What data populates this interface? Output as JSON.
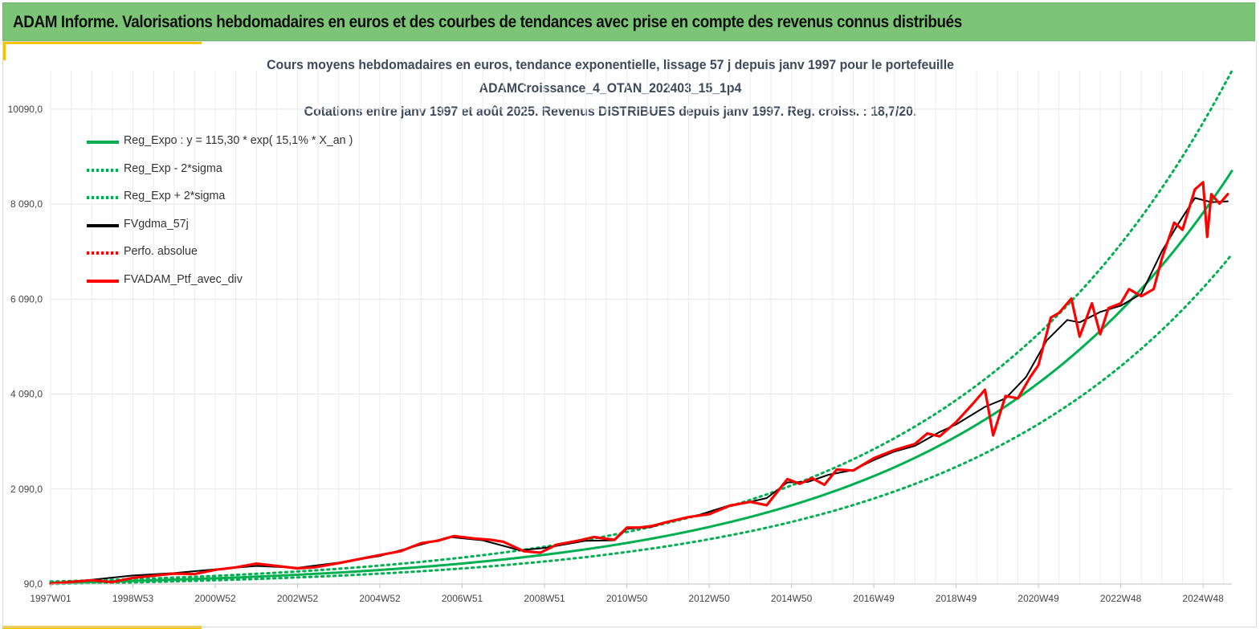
{
  "header": {
    "title": "ADAM Informe. Valorisations hebdomadaires en euros et des courbes de tendances avec prise en compte des revenus connus distribués"
  },
  "chart_data": {
    "type": "line",
    "title_lines": [
      "Cours moyens hebdomadaires  en euros, tendance exponentielle, lissage 57 j depuis janv 1997 pour le portefeuille",
      "ADAMCroissance_4_OTAN_202403_15_1p4",
      "Cotations  entre janv 1997 et août 2025. Revenus DISTRIBUES depuis janv 1997. Reg. croiss. : 18,7/20."
    ],
    "xlabel": "",
    "ylabel": "",
    "ylim": [
      90,
      10900
    ],
    "xlim": [
      1997.0,
      2025.7
    ],
    "y_ticks": [
      90,
      2090,
      4090,
      6090,
      8090,
      10090
    ],
    "y_tick_labels": [
      "90,0",
      "2 090,0",
      "4 090,0",
      "6 090,0",
      "8 090,0",
      "10090,0"
    ],
    "x_ticks": [
      1997.0,
      1999.0,
      2001.0,
      2003.0,
      2005.0,
      2007.0,
      2009.0,
      2011.0,
      2013.0,
      2015.0,
      2017.0,
      2019.0,
      2021.0,
      2023.0,
      2025.0
    ],
    "x_tick_labels": [
      "1997W01",
      "1998W53",
      "2000W52",
      "2002W52",
      "2004W52",
      "2006W51",
      "2008W51",
      "2010W50",
      "2012W50",
      "2014W50",
      "2016W49",
      "2018W49",
      "2020W49",
      "2022W48",
      "2024W48"
    ],
    "grid": true,
    "legend_position": "top-left",
    "trend": {
      "a": 115.3,
      "rate": 0.151,
      "band_factor_low": 0.8,
      "band_factor_high": 1.24
    },
    "series": [
      {
        "name": "Reg_Expo : y = 115,30 * exp( 15,1% *  X_an )",
        "color": "#00b050",
        "style": "solid",
        "derived": "trend"
      },
      {
        "name": "Reg_Exp - 2*sigma",
        "color": "#00b050",
        "style": "dotted",
        "derived": "trend_low"
      },
      {
        "name": "Reg_Exp + 2*sigma",
        "color": "#00b050",
        "style": "dotted",
        "derived": "trend_high"
      },
      {
        "name": "FVgdma_57j",
        "color": "#000000",
        "style": "solid",
        "x": [
          1997.0,
          1998.0,
          1999.0,
          2000.0,
          2001.0,
          2002.0,
          2003.0,
          2004.0,
          2005.0,
          2006.0,
          2006.7,
          2007.5,
          2008.4,
          2009.0,
          2010.0,
          2010.7,
          2011.0,
          2011.6,
          2012.0,
          2012.7,
          2013.5,
          2014.0,
          2014.4,
          2014.9,
          2015.4,
          2015.9,
          2016.5,
          2017.0,
          2017.5,
          2018.0,
          2018.6,
          2019.0,
          2019.7,
          2020.2,
          2020.7,
          2021.2,
          2021.7,
          2022.0,
          2022.5,
          2023.0,
          2023.5,
          2024.0,
          2024.4,
          2024.8,
          2025.2,
          2025.6
        ],
        "y": [
          105,
          180,
          270,
          320,
          400,
          470,
          430,
          540,
          680,
          920,
          1080,
          1010,
          800,
          850,
          1000,
          1010,
          1250,
          1290,
          1400,
          1530,
          1750,
          1820,
          1900,
          2230,
          2240,
          2390,
          2490,
          2700,
          2880,
          3000,
          3290,
          3450,
          3820,
          4000,
          4450,
          5220,
          5650,
          5600,
          5820,
          5950,
          6200,
          7100,
          7680,
          8220,
          8130,
          8150
        ]
      },
      {
        "name": "Perfo. absolue",
        "color": "#ff0000",
        "style": "dotted",
        "x": [],
        "y": []
      },
      {
        "name": "FVADAM_Ptf_avec_div",
        "color": "#ff0000",
        "style": "solid",
        "x": [
          1997.0,
          1998.0,
          1998.5,
          1999.0,
          2000.0,
          2000.5,
          2001.0,
          2001.5,
          2002.0,
          2003.0,
          2003.4,
          2004.0,
          2005.0,
          2005.5,
          2006.0,
          2006.4,
          2006.8,
          2007.3,
          2007.7,
          2008.0,
          2008.5,
          2008.9,
          2009.3,
          2009.8,
          2010.2,
          2010.7,
          2011.0,
          2011.3,
          2011.6,
          2012.0,
          2012.5,
          2013.0,
          2013.5,
          2014.0,
          2014.4,
          2014.9,
          2015.2,
          2015.5,
          2015.8,
          2016.1,
          2016.5,
          2017.0,
          2017.5,
          2018.0,
          2018.3,
          2018.6,
          2019.0,
          2019.4,
          2019.7,
          2019.9,
          2020.2,
          2020.5,
          2020.8,
          2021.0,
          2021.3,
          2021.5,
          2021.8,
          2022.0,
          2022.3,
          2022.5,
          2022.7,
          2023.0,
          2023.2,
          2023.5,
          2023.8,
          2024.0,
          2024.3,
          2024.5,
          2024.8,
          2025.0,
          2025.1,
          2025.2,
          2025.4,
          2025.6
        ],
        "y": [
          100,
          170,
          130,
          220,
          310,
          300,
          390,
          440,
          520,
          420,
          440,
          530,
          700,
          780,
          950,
          1000,
          1100,
          1050,
          1020,
          980,
          780,
          750,
          920,
          1000,
          1080,
          1020,
          1280,
          1280,
          1310,
          1400,
          1500,
          1560,
          1740,
          1820,
          1750,
          2300,
          2200,
          2320,
          2180,
          2500,
          2480,
          2740,
          2910,
          3040,
          3260,
          3200,
          3500,
          3880,
          4180,
          3220,
          4050,
          4000,
          4450,
          4700,
          5700,
          5800,
          6100,
          5300,
          6000,
          5350,
          5900,
          6000,
          6300,
          6150,
          6300,
          6950,
          7700,
          7550,
          8400,
          8550,
          7400,
          8300,
          8100,
          8300
        ]
      }
    ]
  }
}
